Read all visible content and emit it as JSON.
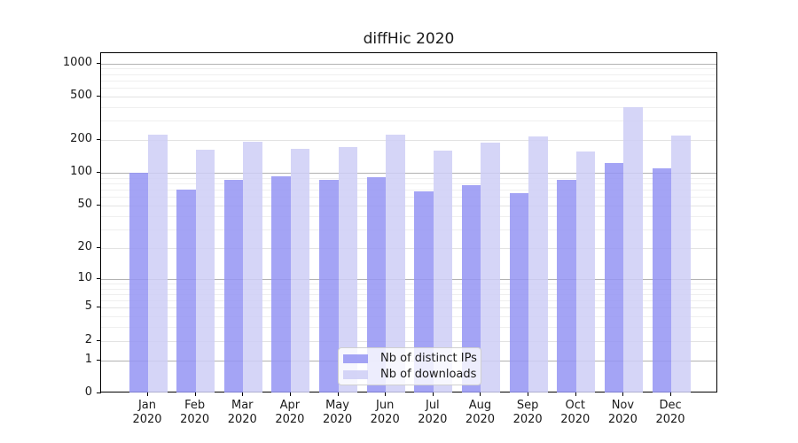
{
  "chart_data": {
    "type": "bar",
    "title": "diffHic 2020",
    "categories": [
      "Jan",
      "Feb",
      "Mar",
      "Apr",
      "May",
      "Jun",
      "Jul",
      "Aug",
      "Sep",
      "Oct",
      "Nov",
      "Dec"
    ],
    "category_year": "2020",
    "series": [
      {
        "name": "Nb of distinct IPs",
        "values": [
          100,
          70,
          87,
          94,
          86,
          92,
          68,
          77,
          65,
          87,
          123,
          111
        ],
        "color": "#9494f3"
      },
      {
        "name": "Nb of downloads",
        "values": [
          225,
          163,
          195,
          166,
          174,
          225,
          160,
          189,
          218,
          158,
          400,
          221
        ],
        "color": "#cecef6"
      }
    ],
    "yscale": "log1p",
    "ylim": [
      0,
      1000
    ],
    "yticks": [
      0,
      1,
      2,
      5,
      10,
      20,
      50,
      100,
      200,
      500,
      1000
    ],
    "grid": true,
    "legend_position": "lower center",
    "colors": {
      "grid_major": "#b2b2b2",
      "grid_labeled": "#e3e3e3",
      "grid_minor": "#efefef",
      "axis": "#000000",
      "text": "#1a1a1a"
    }
  }
}
